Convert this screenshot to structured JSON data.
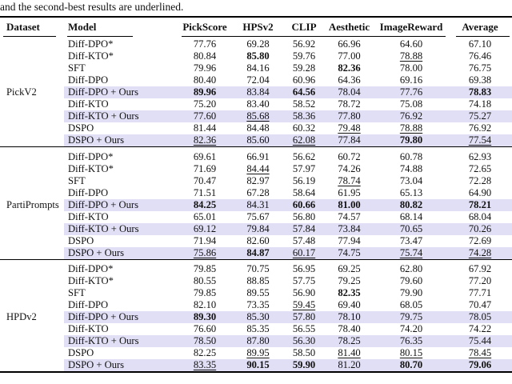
{
  "caption": "and the second-best results are underlined.",
  "columns": [
    "Dataset",
    "Model",
    "PickScore",
    "HPSv2",
    "CLIP",
    "Aesthetic",
    "ImageReward",
    "Average"
  ],
  "highlight_color": "#e1dff5",
  "groups": [
    {
      "dataset": "PickV2",
      "rows": [
        {
          "model": "Diff-DPO*",
          "ours": false,
          "cells": [
            [
              "77.76",
              ""
            ],
            [
              "69.28",
              ""
            ],
            [
              "56.92",
              ""
            ],
            [
              "66.96",
              ""
            ],
            [
              "64.60",
              ""
            ],
            [
              "67.10",
              ""
            ]
          ]
        },
        {
          "model": "Diff-KTO*",
          "ours": false,
          "cells": [
            [
              "80.84",
              ""
            ],
            [
              "85.80",
              "b"
            ],
            [
              "59.76",
              ""
            ],
            [
              "77.00",
              ""
            ],
            [
              "78.88",
              "u"
            ],
            [
              "76.46",
              ""
            ]
          ]
        },
        {
          "model": "SFT",
          "ours": false,
          "cells": [
            [
              "79.96",
              ""
            ],
            [
              "84.16",
              ""
            ],
            [
              "59.28",
              ""
            ],
            [
              "82.36",
              "b"
            ],
            [
              "78.00",
              ""
            ],
            [
              "76.75",
              ""
            ]
          ]
        },
        {
          "model": "Diff-DPO",
          "ours": false,
          "cells": [
            [
              "80.40",
              ""
            ],
            [
              "72.04",
              ""
            ],
            [
              "60.96",
              ""
            ],
            [
              "64.36",
              ""
            ],
            [
              "69.16",
              ""
            ],
            [
              "69.38",
              ""
            ]
          ]
        },
        {
          "model": "Diff-DPO + Ours",
          "ours": true,
          "cells": [
            [
              "89.96",
              "b"
            ],
            [
              "83.84",
              ""
            ],
            [
              "64.56",
              "b"
            ],
            [
              "78.04",
              ""
            ],
            [
              "77.76",
              ""
            ],
            [
              "78.83",
              "b"
            ]
          ]
        },
        {
          "model": "Diff-KTO",
          "ours": false,
          "cells": [
            [
              "75.20",
              ""
            ],
            [
              "83.40",
              ""
            ],
            [
              "58.52",
              ""
            ],
            [
              "78.72",
              ""
            ],
            [
              "75.08",
              ""
            ],
            [
              "74.18",
              ""
            ]
          ]
        },
        {
          "model": "Diff-KTO + Ours",
          "ours": true,
          "cells": [
            [
              "77.60",
              ""
            ],
            [
              "85.68",
              "u"
            ],
            [
              "58.36",
              ""
            ],
            [
              "77.80",
              ""
            ],
            [
              "76.92",
              ""
            ],
            [
              "75.27",
              ""
            ]
          ]
        },
        {
          "model": "DSPO",
          "ours": false,
          "cells": [
            [
              "81.44",
              ""
            ],
            [
              "84.48",
              ""
            ],
            [
              "60.32",
              ""
            ],
            [
              "79.48",
              "u"
            ],
            [
              "78.88",
              "u"
            ],
            [
              "76.92",
              ""
            ]
          ]
        },
        {
          "model": "DSPO + Ours",
          "ours": true,
          "cells": [
            [
              "82.36",
              "u"
            ],
            [
              "85.60",
              ""
            ],
            [
              "62.08",
              "u"
            ],
            [
              "77.84",
              ""
            ],
            [
              "79.80",
              "b"
            ],
            [
              "77.54",
              "u"
            ]
          ]
        }
      ]
    },
    {
      "dataset": "PartiPrompts",
      "rows": [
        {
          "model": "Diff-DPO*",
          "ours": false,
          "cells": [
            [
              "69.61",
              ""
            ],
            [
              "66.91",
              ""
            ],
            [
              "56.62",
              ""
            ],
            [
              "60.72",
              ""
            ],
            [
              "60.78",
              ""
            ],
            [
              "62.93",
              ""
            ]
          ]
        },
        {
          "model": "Diff-KTO*",
          "ours": false,
          "cells": [
            [
              "71.69",
              ""
            ],
            [
              "84.44",
              "u"
            ],
            [
              "57.97",
              ""
            ],
            [
              "74.26",
              ""
            ],
            [
              "74.88",
              ""
            ],
            [
              "72.65",
              ""
            ]
          ]
        },
        {
          "model": "SFT",
          "ours": false,
          "cells": [
            [
              "70.47",
              ""
            ],
            [
              "82.97",
              ""
            ],
            [
              "56.19",
              ""
            ],
            [
              "78.74",
              "u"
            ],
            [
              "73.04",
              ""
            ],
            [
              "72.28",
              ""
            ]
          ]
        },
        {
          "model": "Diff-DPO",
          "ours": false,
          "cells": [
            [
              "71.51",
              ""
            ],
            [
              "67.28",
              ""
            ],
            [
              "58.64",
              ""
            ],
            [
              "61.95",
              ""
            ],
            [
              "65.13",
              ""
            ],
            [
              "64.90",
              ""
            ]
          ]
        },
        {
          "model": "Diff-DPO + Ours",
          "ours": true,
          "cells": [
            [
              "84.25",
              "b"
            ],
            [
              "84.31",
              ""
            ],
            [
              "60.66",
              "b"
            ],
            [
              "81.00",
              "b"
            ],
            [
              "80.82",
              "b"
            ],
            [
              "78.21",
              "b"
            ]
          ]
        },
        {
          "model": "Diff-KTO",
          "ours": false,
          "cells": [
            [
              "65.01",
              ""
            ],
            [
              "75.67",
              ""
            ],
            [
              "56.80",
              ""
            ],
            [
              "74.57",
              ""
            ],
            [
              "68.14",
              ""
            ],
            [
              "68.04",
              ""
            ]
          ]
        },
        {
          "model": "Diff-KTO + Ours",
          "ours": true,
          "cells": [
            [
              "69.12",
              ""
            ],
            [
              "79.84",
              ""
            ],
            [
              "57.84",
              ""
            ],
            [
              "73.84",
              ""
            ],
            [
              "70.65",
              ""
            ],
            [
              "70.26",
              ""
            ]
          ]
        },
        {
          "model": "DSPO",
          "ours": false,
          "cells": [
            [
              "71.94",
              ""
            ],
            [
              "82.60",
              ""
            ],
            [
              "57.48",
              ""
            ],
            [
              "77.94",
              ""
            ],
            [
              "73.47",
              ""
            ],
            [
              "72.69",
              ""
            ]
          ]
        },
        {
          "model": "DSPO + Ours",
          "ours": true,
          "cells": [
            [
              "75.86",
              "u"
            ],
            [
              "84.87",
              "b"
            ],
            [
              "60.17",
              "u"
            ],
            [
              "74.75",
              ""
            ],
            [
              "75.74",
              "u"
            ],
            [
              "74.28",
              "u"
            ]
          ]
        }
      ]
    },
    {
      "dataset": "HPDv2",
      "rows": [
        {
          "model": "Diff-DPO*",
          "ours": false,
          "cells": [
            [
              "79.85",
              ""
            ],
            [
              "70.75",
              ""
            ],
            [
              "56.95",
              ""
            ],
            [
              "69.25",
              ""
            ],
            [
              "62.80",
              ""
            ],
            [
              "67.92",
              ""
            ]
          ]
        },
        {
          "model": "Diff-KTO*",
          "ours": false,
          "cells": [
            [
              "80.55",
              ""
            ],
            [
              "88.85",
              ""
            ],
            [
              "57.75",
              ""
            ],
            [
              "79.25",
              ""
            ],
            [
              "79.60",
              ""
            ],
            [
              "77.20",
              ""
            ]
          ]
        },
        {
          "model": "SFT",
          "ours": false,
          "cells": [
            [
              "79.85",
              ""
            ],
            [
              "89.55",
              ""
            ],
            [
              "56.90",
              ""
            ],
            [
              "82.35",
              "b"
            ],
            [
              "79.90",
              ""
            ],
            [
              "77.71",
              ""
            ]
          ]
        },
        {
          "model": "Diff-DPO",
          "ours": false,
          "cells": [
            [
              "82.10",
              ""
            ],
            [
              "73.35",
              ""
            ],
            [
              "59.45",
              "u"
            ],
            [
              "69.40",
              ""
            ],
            [
              "68.05",
              ""
            ],
            [
              "70.47",
              ""
            ]
          ]
        },
        {
          "model": "Diff-DPO + Ours",
          "ours": true,
          "cells": [
            [
              "89.30",
              "b"
            ],
            [
              "85.30",
              ""
            ],
            [
              "57.80",
              ""
            ],
            [
              "78.10",
              ""
            ],
            [
              "79.75",
              ""
            ],
            [
              "78.05",
              ""
            ]
          ]
        },
        {
          "model": "Diff-KTO",
          "ours": false,
          "cells": [
            [
              "76.60",
              ""
            ],
            [
              "85.35",
              ""
            ],
            [
              "56.55",
              ""
            ],
            [
              "78.40",
              ""
            ],
            [
              "74.20",
              ""
            ],
            [
              "74.22",
              ""
            ]
          ]
        },
        {
          "model": "Diff-KTO + Ours",
          "ours": true,
          "cells": [
            [
              "78.50",
              ""
            ],
            [
              "87.80",
              ""
            ],
            [
              "56.30",
              ""
            ],
            [
              "78.25",
              ""
            ],
            [
              "76.35",
              ""
            ],
            [
              "75.44",
              ""
            ]
          ]
        },
        {
          "model": "DSPO",
          "ours": false,
          "cells": [
            [
              "82.25",
              ""
            ],
            [
              "89.95",
              "u"
            ],
            [
              "58.50",
              ""
            ],
            [
              "81.40",
              "u"
            ],
            [
              "80.15",
              "u"
            ],
            [
              "78.45",
              "u"
            ]
          ]
        },
        {
          "model": "DSPO + Ours",
          "ours": true,
          "cells": [
            [
              "83.35",
              "u"
            ],
            [
              "90.15",
              "b"
            ],
            [
              "59.90",
              "b"
            ],
            [
              "81.20",
              ""
            ],
            [
              "80.70",
              "b"
            ],
            [
              "79.06",
              "b"
            ]
          ]
        }
      ]
    }
  ]
}
